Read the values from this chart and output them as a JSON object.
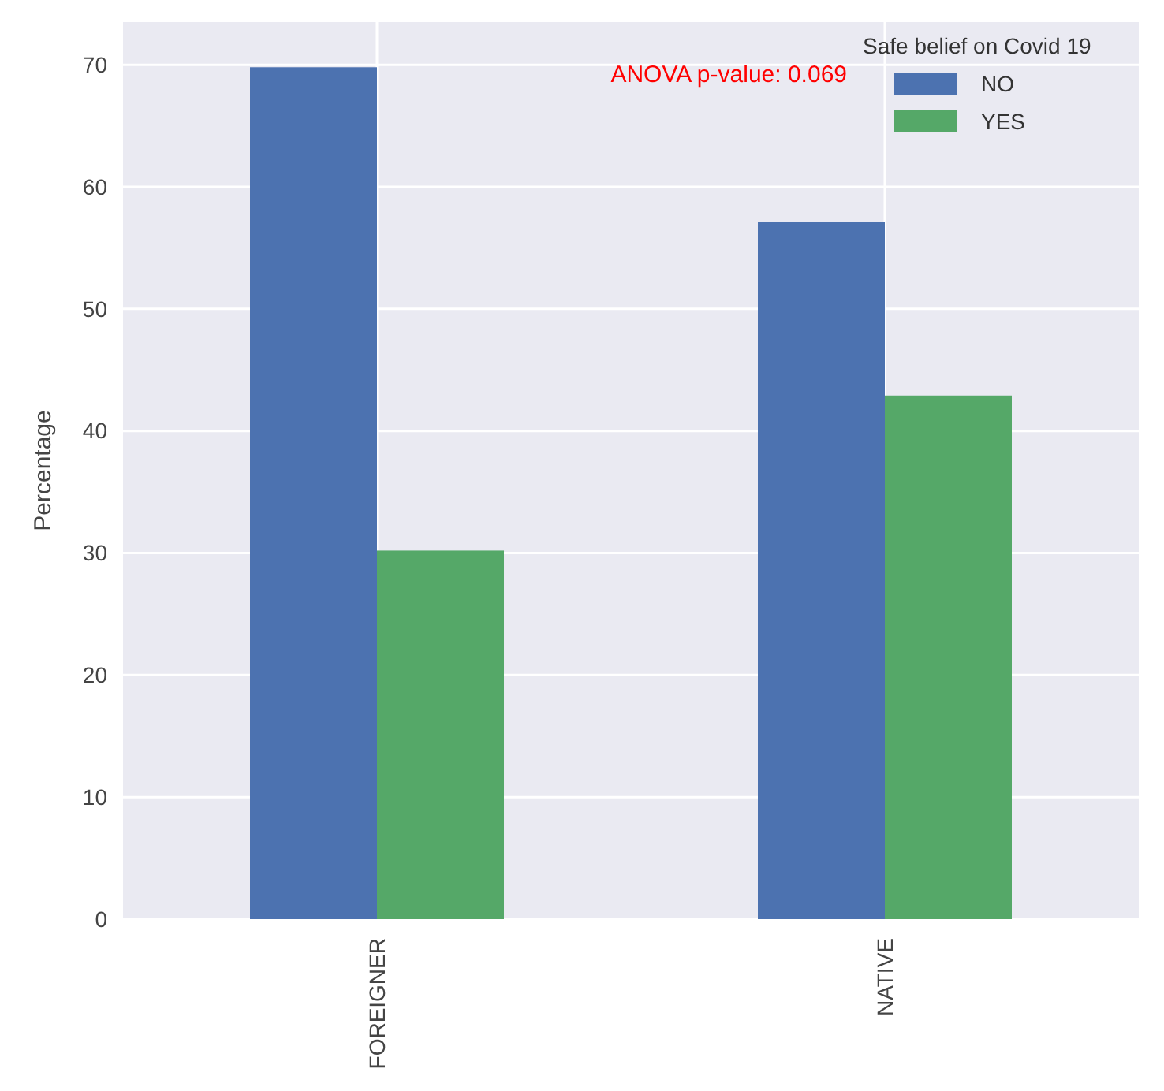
{
  "chart_data": {
    "type": "bar",
    "ylabel": "Percentage",
    "legend_title": "Safe belief on Covid 19",
    "categories": [
      "FOREIGNER",
      "NATIVE"
    ],
    "series": [
      {
        "name": "NO",
        "color": "#4c72b0",
        "values": [
          69.8,
          57.1
        ]
      },
      {
        "name": "YES",
        "color": "#55a868",
        "values": [
          30.2,
          42.9
        ]
      }
    ],
    "ylim": [
      0,
      73.5
    ],
    "yticks": [
      0,
      10,
      20,
      30,
      40,
      50,
      60,
      70
    ],
    "grid": true,
    "legend": "top right",
    "annotations": [
      {
        "text": "ANOVA p-value: 0.069"
      }
    ]
  }
}
